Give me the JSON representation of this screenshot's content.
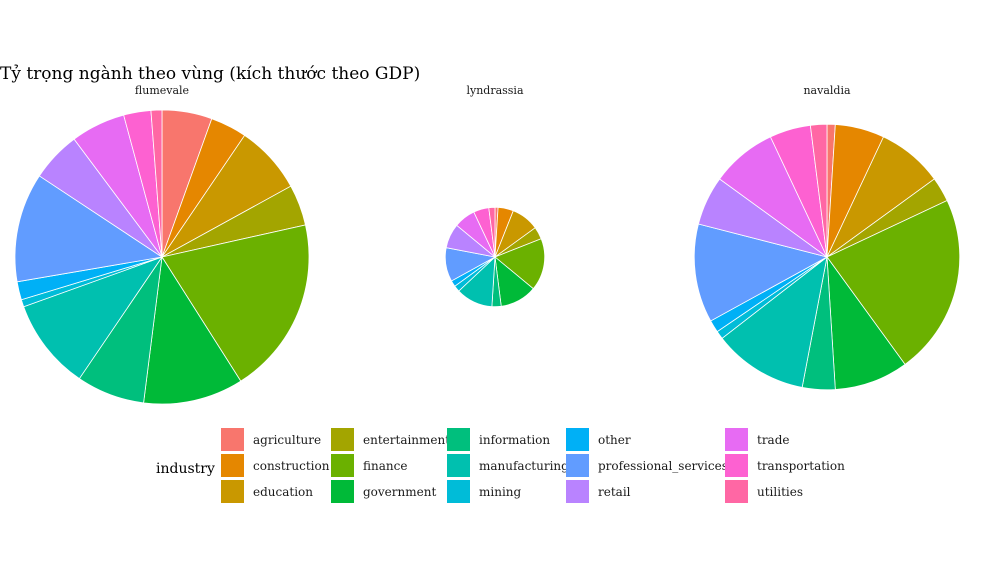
{
  "chart_data": {
    "type": "pie",
    "title": "Tỷ trọng ngành theo vùng (kích thước theo GDP)",
    "legend": {
      "title": "industry",
      "position": "bottom"
    },
    "categories": [
      "agriculture",
      "construction",
      "education",
      "entertainment",
      "finance",
      "government",
      "information",
      "manufacturing",
      "mining",
      "other",
      "professional_services",
      "retail",
      "trade",
      "transportation",
      "utilities"
    ],
    "colors": {
      "agriculture": "#F8766D",
      "construction": "#E58700",
      "education": "#C99800",
      "entertainment": "#A3A500",
      "finance": "#6BB100",
      "government": "#00BA38",
      "information": "#00BF7D",
      "manufacturing": "#00C0AF",
      "mining": "#00BCD8",
      "other": "#00B0F6",
      "professional_services": "#619CFF",
      "retail": "#B983FF",
      "trade": "#E76BF3",
      "transportation": "#FD61D1",
      "utilities": "#FF67A4"
    },
    "facets": [
      {
        "name": "flumevale",
        "relative_size": 1.0,
        "slices": {
          "agriculture": 5.5,
          "construction": 4.0,
          "education": 7.5,
          "entertainment": 4.5,
          "finance": 19.5,
          "government": 11.0,
          "information": 7.5,
          "manufacturing": 10.0,
          "mining": 0.8,
          "other": 2.0,
          "professional_services": 12.0,
          "retail": 5.5,
          "trade": 6.0,
          "transportation": 3.0,
          "utilities": 1.2
        }
      },
      {
        "name": "lyndrassia",
        "relative_size": 0.338,
        "slices": {
          "agriculture": 1.0,
          "construction": 5.0,
          "education": 9.0,
          "entertainment": 4.0,
          "finance": 17.0,
          "government": 12.0,
          "information": 3.0,
          "manufacturing": 12.0,
          "mining": 2.0,
          "other": 2.0,
          "professional_services": 11.0,
          "retail": 8.0,
          "trade": 7.0,
          "transportation": 5.0,
          "utilities": 2.0
        }
      },
      {
        "name": "navaldia",
        "relative_size": 0.903,
        "slices": {
          "agriculture": 1.0,
          "construction": 6.0,
          "education": 8.0,
          "entertainment": 3.0,
          "finance": 22.0,
          "government": 9.0,
          "information": 4.0,
          "manufacturing": 11.5,
          "mining": 1.0,
          "other": 1.5,
          "professional_services": 12.0,
          "retail": 6.0,
          "trade": 8.0,
          "transportation": 5.0,
          "utilities": 2.0
        }
      }
    ]
  }
}
